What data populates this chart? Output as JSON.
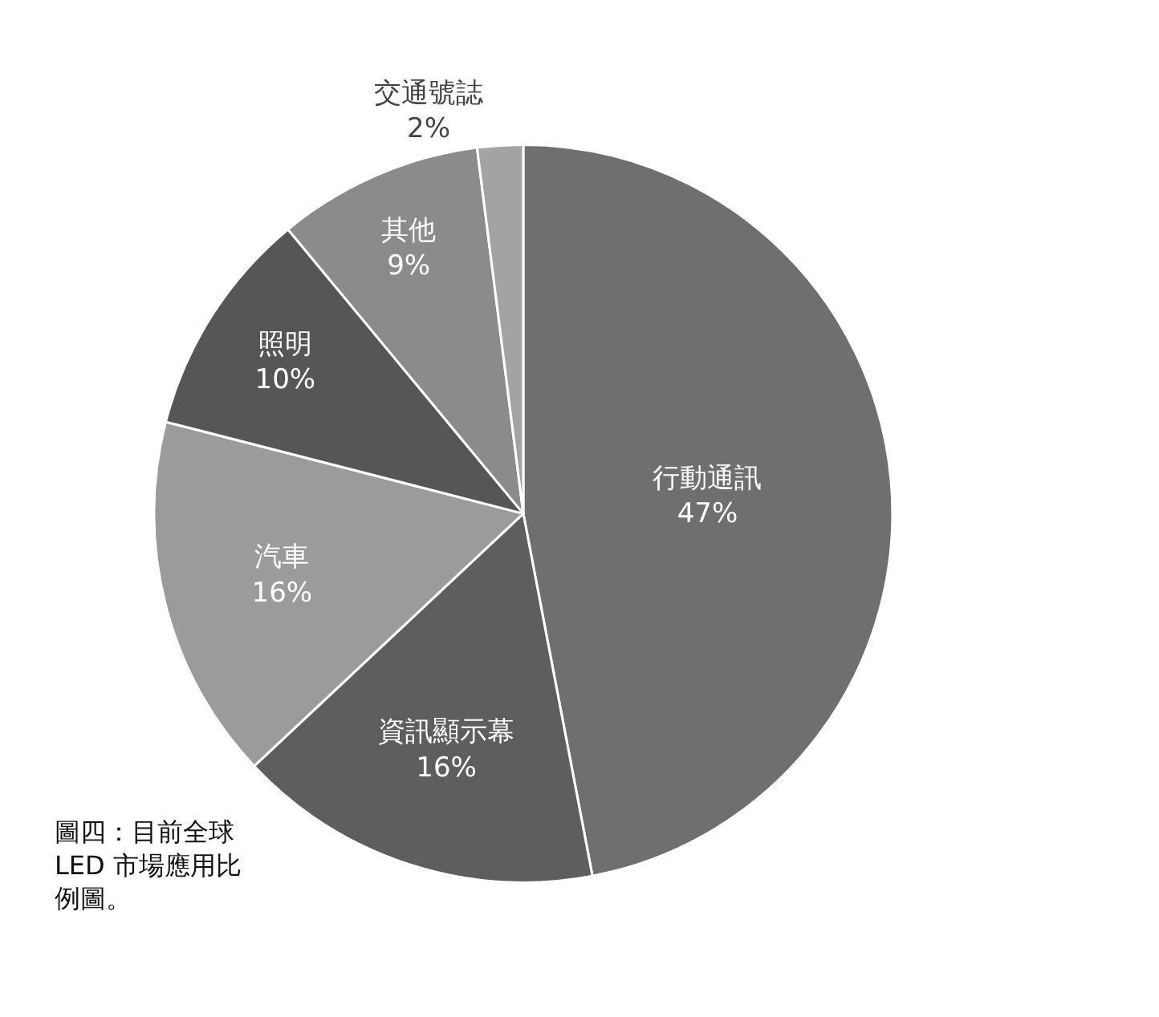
{
  "chart_data": {
    "type": "pie",
    "categories": [
      "行動通訊",
      "資訊顯示幕",
      "汽車",
      "照明",
      "其他",
      "交通號誌"
    ],
    "values": [
      47,
      16,
      16,
      10,
      9,
      2
    ],
    "value_labels": [
      "47%",
      "16%",
      "16%",
      "10%",
      "9%",
      "2%"
    ],
    "colors": [
      "#6f6f6f",
      "#5e5e5e",
      "#9b9b9b",
      "#565656",
      "#8b8b8b",
      "#a3a3a3"
    ],
    "legend": false,
    "annotations": [
      "圖四：目前全球LED 市場應用比例圖。"
    ]
  }
}
